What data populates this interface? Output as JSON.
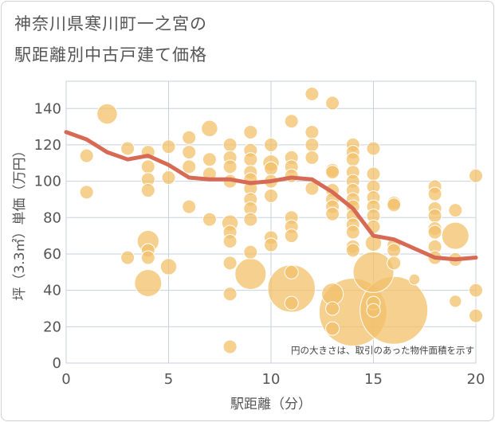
{
  "title_line1": "神奈川県寒川町一之宮の",
  "title_line2": "駅距離別中古戸建て価格",
  "chart_data": {
    "type": "scatter",
    "xlabel": "駅距離（分）",
    "ylabel": "坪（3.3㎡）単価（万円）",
    "xlim": [
      0,
      20
    ],
    "ylim": [
      0,
      155
    ],
    "xticks": [
      0,
      5,
      10,
      15,
      20
    ],
    "yticks": [
      0,
      20,
      40,
      60,
      80,
      100,
      120,
      140
    ],
    "grid": true,
    "note": "円の大きさは、取引のあった物件面積を示す",
    "bubble_color": "#f2c069",
    "line_color": "#d66a55",
    "points": [
      {
        "x": 1,
        "y": 114,
        "s": 1
      },
      {
        "x": 1,
        "y": 94,
        "s": 1
      },
      {
        "x": 2,
        "y": 137,
        "s": 1.5
      },
      {
        "x": 3,
        "y": 118,
        "s": 1
      },
      {
        "x": 3,
        "y": 58,
        "s": 1
      },
      {
        "x": 4,
        "y": 116,
        "s": 1
      },
      {
        "x": 4,
        "y": 108,
        "s": 1
      },
      {
        "x": 4,
        "y": 101,
        "s": 1
      },
      {
        "x": 4,
        "y": 95,
        "s": 1
      },
      {
        "x": 4,
        "y": 67,
        "s": 1.6
      },
      {
        "x": 4,
        "y": 62,
        "s": 1
      },
      {
        "x": 4,
        "y": 58,
        "s": 1
      },
      {
        "x": 4,
        "y": 44,
        "s": 2
      },
      {
        "x": 5,
        "y": 119,
        "s": 1
      },
      {
        "x": 5,
        "y": 102,
        "s": 1
      },
      {
        "x": 5,
        "y": 53,
        "s": 1.2
      },
      {
        "x": 6,
        "y": 124,
        "s": 1
      },
      {
        "x": 6,
        "y": 116,
        "s": 1
      },
      {
        "x": 6,
        "y": 108,
        "s": 1
      },
      {
        "x": 6,
        "y": 86,
        "s": 1
      },
      {
        "x": 7,
        "y": 129,
        "s": 1.2
      },
      {
        "x": 7,
        "y": 112,
        "s": 1
      },
      {
        "x": 7,
        "y": 104,
        "s": 1
      },
      {
        "x": 7,
        "y": 79,
        "s": 1
      },
      {
        "x": 8,
        "y": 120,
        "s": 1
      },
      {
        "x": 8,
        "y": 113,
        "s": 1
      },
      {
        "x": 8,
        "y": 108,
        "s": 1
      },
      {
        "x": 8,
        "y": 100,
        "s": 1
      },
      {
        "x": 8,
        "y": 77,
        "s": 1.2
      },
      {
        "x": 8,
        "y": 72,
        "s": 1
      },
      {
        "x": 8,
        "y": 67,
        "s": 1
      },
      {
        "x": 8,
        "y": 55,
        "s": 1
      },
      {
        "x": 8,
        "y": 38,
        "s": 1
      },
      {
        "x": 8,
        "y": 9,
        "s": 1
      },
      {
        "x": 9,
        "y": 127,
        "s": 1
      },
      {
        "x": 9,
        "y": 117,
        "s": 1
      },
      {
        "x": 9,
        "y": 112,
        "s": 1
      },
      {
        "x": 9,
        "y": 105,
        "s": 1
      },
      {
        "x": 9,
        "y": 101,
        "s": 1
      },
      {
        "x": 9,
        "y": 96,
        "s": 1
      },
      {
        "x": 9,
        "y": 90,
        "s": 1
      },
      {
        "x": 9,
        "y": 85,
        "s": 1
      },
      {
        "x": 9,
        "y": 79,
        "s": 1
      },
      {
        "x": 9,
        "y": 61,
        "s": 1
      },
      {
        "x": 9,
        "y": 49,
        "s": 2.3
      },
      {
        "x": 10,
        "y": 120,
        "s": 1
      },
      {
        "x": 10,
        "y": 110,
        "s": 1.2
      },
      {
        "x": 10,
        "y": 107,
        "s": 1
      },
      {
        "x": 10,
        "y": 100,
        "s": 1
      },
      {
        "x": 10,
        "y": 92,
        "s": 1
      },
      {
        "x": 10,
        "y": 69,
        "s": 1
      },
      {
        "x": 10,
        "y": 65,
        "s": 1
      },
      {
        "x": 11,
        "y": 133,
        "s": 1
      },
      {
        "x": 11,
        "y": 113,
        "s": 1
      },
      {
        "x": 11,
        "y": 108,
        "s": 1
      },
      {
        "x": 11,
        "y": 103,
        "s": 1
      },
      {
        "x": 11,
        "y": 80,
        "s": 1
      },
      {
        "x": 11,
        "y": 75,
        "s": 1
      },
      {
        "x": 11,
        "y": 70,
        "s": 1
      },
      {
        "x": 11,
        "y": 50,
        "s": 1
      },
      {
        "x": 11,
        "y": 41,
        "s": 3.5
      },
      {
        "x": 11,
        "y": 33,
        "s": 1
      },
      {
        "x": 12,
        "y": 148,
        "s": 1
      },
      {
        "x": 12,
        "y": 127,
        "s": 1
      },
      {
        "x": 12,
        "y": 120,
        "s": 1
      },
      {
        "x": 12,
        "y": 113,
        "s": 1
      },
      {
        "x": 12,
        "y": 96,
        "s": 1
      },
      {
        "x": 13,
        "y": 143,
        "s": 1
      },
      {
        "x": 13,
        "y": 106,
        "s": 1
      },
      {
        "x": 13,
        "y": 105,
        "s": 1
      },
      {
        "x": 13,
        "y": 95,
        "s": 1
      },
      {
        "x": 13,
        "y": 90,
        "s": 1
      },
      {
        "x": 13,
        "y": 86,
        "s": 1
      },
      {
        "x": 13,
        "y": 82,
        "s": 1
      },
      {
        "x": 13,
        "y": 38,
        "s": 1.6
      },
      {
        "x": 13,
        "y": 30,
        "s": 1
      },
      {
        "x": 13,
        "y": 19,
        "s": 1
      },
      {
        "x": 14,
        "y": 120,
        "s": 1
      },
      {
        "x": 14,
        "y": 116,
        "s": 1
      },
      {
        "x": 14,
        "y": 112,
        "s": 1
      },
      {
        "x": 14,
        "y": 105,
        "s": 1
      },
      {
        "x": 14,
        "y": 100,
        "s": 1
      },
      {
        "x": 14,
        "y": 95,
        "s": 1
      },
      {
        "x": 14,
        "y": 90,
        "s": 1
      },
      {
        "x": 14,
        "y": 86,
        "s": 1
      },
      {
        "x": 14,
        "y": 81,
        "s": 1
      },
      {
        "x": 14,
        "y": 76,
        "s": 1
      },
      {
        "x": 14,
        "y": 72,
        "s": 1
      },
      {
        "x": 14,
        "y": 64,
        "s": 1
      },
      {
        "x": 14,
        "y": 62,
        "s": 1
      },
      {
        "x": 14,
        "y": 28,
        "s": 5
      },
      {
        "x": 15,
        "y": 118,
        "s": 1
      },
      {
        "x": 15,
        "y": 104,
        "s": 1
      },
      {
        "x": 15,
        "y": 97,
        "s": 1
      },
      {
        "x": 15,
        "y": 91,
        "s": 1
      },
      {
        "x": 15,
        "y": 86,
        "s": 1
      },
      {
        "x": 15,
        "y": 81,
        "s": 1
      },
      {
        "x": 15,
        "y": 75,
        "s": 1
      },
      {
        "x": 15,
        "y": 66,
        "s": 1.2
      },
      {
        "x": 15,
        "y": 50,
        "s": 3
      },
      {
        "x": 15,
        "y": 33,
        "s": 1
      },
      {
        "x": 15,
        "y": 29,
        "s": 1
      },
      {
        "x": 16,
        "y": 88,
        "s": 1
      },
      {
        "x": 16,
        "y": 87,
        "s": 1
      },
      {
        "x": 16,
        "y": 65,
        "s": 1
      },
      {
        "x": 16,
        "y": 62,
        "s": 1
      },
      {
        "x": 16,
        "y": 55,
        "s": 1
      },
      {
        "x": 16,
        "y": 29,
        "s": 5
      },
      {
        "x": 17,
        "y": 46,
        "s": 0.8
      },
      {
        "x": 18,
        "y": 97,
        "s": 1
      },
      {
        "x": 18,
        "y": 93,
        "s": 1
      },
      {
        "x": 18,
        "y": 85,
        "s": 1
      },
      {
        "x": 18,
        "y": 81,
        "s": 1
      },
      {
        "x": 18,
        "y": 74,
        "s": 1
      },
      {
        "x": 18,
        "y": 72,
        "s": 1
      },
      {
        "x": 18,
        "y": 64,
        "s": 1
      },
      {
        "x": 18,
        "y": 58,
        "s": 1
      },
      {
        "x": 19,
        "y": 84,
        "s": 1
      },
      {
        "x": 19,
        "y": 70,
        "s": 2
      },
      {
        "x": 19,
        "y": 57,
        "s": 1
      },
      {
        "x": 19,
        "y": 34,
        "s": 0.9
      },
      {
        "x": 20,
        "y": 103,
        "s": 1
      },
      {
        "x": 20,
        "y": 40,
        "s": 1
      },
      {
        "x": 20,
        "y": 26,
        "s": 1
      }
    ],
    "trend_line": [
      {
        "x": 0,
        "y": 127
      },
      {
        "x": 1,
        "y": 123
      },
      {
        "x": 2,
        "y": 116
      },
      {
        "x": 3,
        "y": 112
      },
      {
        "x": 4,
        "y": 114
      },
      {
        "x": 5,
        "y": 109
      },
      {
        "x": 6,
        "y": 102
      },
      {
        "x": 7,
        "y": 101
      },
      {
        "x": 8,
        "y": 101
      },
      {
        "x": 9,
        "y": 99
      },
      {
        "x": 10,
        "y": 100
      },
      {
        "x": 11,
        "y": 102
      },
      {
        "x": 12,
        "y": 101
      },
      {
        "x": 13,
        "y": 94
      },
      {
        "x": 14,
        "y": 85
      },
      {
        "x": 15,
        "y": 70
      },
      {
        "x": 16,
        "y": 68
      },
      {
        "x": 17,
        "y": 63
      },
      {
        "x": 18,
        "y": 58
      },
      {
        "x": 19,
        "y": 57
      },
      {
        "x": 20,
        "y": 58
      }
    ]
  }
}
